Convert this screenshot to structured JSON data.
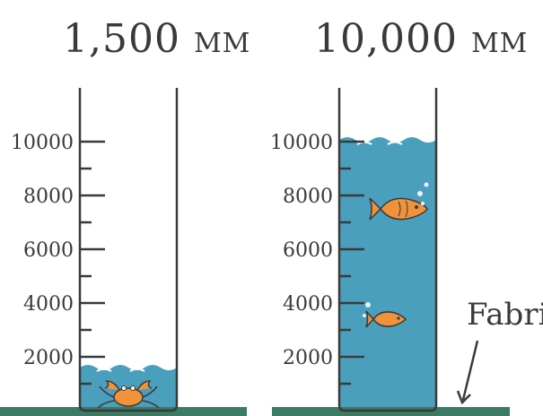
{
  "columns": [
    {
      "value_text": "1,500",
      "unit": "MM",
      "water_level": 1500,
      "creature": "crab-icon"
    },
    {
      "value_text": "10,000",
      "unit": "MM",
      "water_level": 10000,
      "creature": "fish-icon"
    }
  ],
  "scale": {
    "ticks": [
      "10000",
      "8000",
      "6000",
      "4000",
      "2000"
    ],
    "max": 10000
  },
  "fabric_label": "Fabric",
  "colors": {
    "water": "#4a9fbd",
    "ground": "#3b7a63",
    "outline": "#3a3a3a",
    "creature": "#f0923a"
  }
}
